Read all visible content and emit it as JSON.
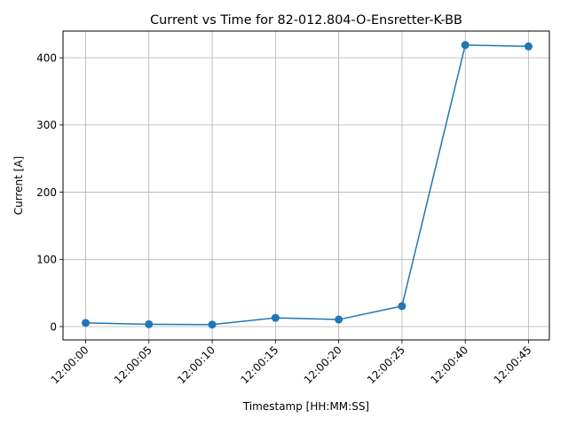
{
  "chart_data": {
    "type": "line",
    "title": "Current vs Time for 82-012.804-O-Ensretter-K-BB",
    "xlabel": "Timestamp [HH:MM:SS]",
    "ylabel": "Current [A]",
    "categories": [
      "12:00:00",
      "12:00:05",
      "12:00:10",
      "12:00:15",
      "12:00:20",
      "12:00:25",
      "12:00:40",
      "12:00:45"
    ],
    "series": [
      {
        "values": [
          5.5,
          3.5,
          3.0,
          13.0,
          10.5,
          30.5,
          419.0,
          417.0
        ]
      }
    ],
    "ylim": [
      -19.8,
      439.8
    ],
    "yticks": [
      0,
      100,
      200,
      300,
      400
    ],
    "grid": true,
    "line_color": "#1f77b4",
    "marker": "circle"
  }
}
